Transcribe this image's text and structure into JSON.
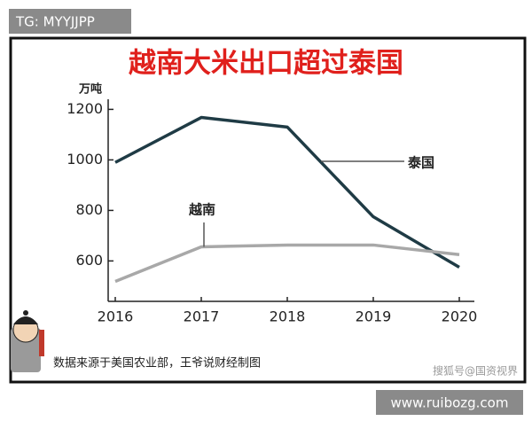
{
  "tg_label": "TG: MYYJJPP",
  "site_label": "www.ruibozg.com",
  "source": "数据来源于美国农业部，王爷说财经制图",
  "watermark": "搜狐号@国资视界",
  "chart_data": {
    "type": "line",
    "title": "越南大米出口超过泰国",
    "y_label": "万吨",
    "categories": [
      "2016",
      "2017",
      "2018",
      "2019",
      "2020"
    ],
    "series": [
      {
        "name": "泰国",
        "color": "#1f3b45",
        "values": [
          990,
          1168,
          1130,
          775,
          575
        ]
      },
      {
        "name": "越南",
        "color": "#a8a8a8",
        "values": [
          519,
          656,
          663,
          663,
          625
        ]
      }
    ],
    "ylim": [
      440,
      1240
    ],
    "yticks": [
      600,
      800,
      1000,
      1200
    ],
    "grid": false
  }
}
